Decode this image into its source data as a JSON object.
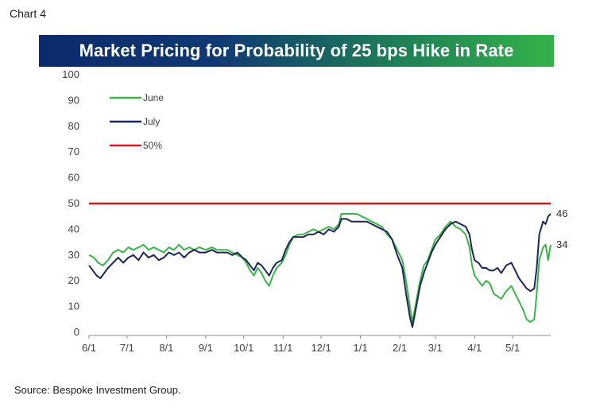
{
  "header": {
    "chart_label": "Chart 4"
  },
  "footer": {
    "source": "Source: Bespoke Investment Group."
  },
  "colors": {
    "june": "#3cb34a",
    "july": "#1b2756",
    "threshold": "#d7191c",
    "banner_start": "#0b2a6b",
    "banner_end": "#34b24a"
  },
  "chart_data": {
    "type": "line",
    "title": "Market Pricing for Probability of 25 bps Hike in Rate",
    "xlabel": "",
    "ylabel": "",
    "ylim": [
      0,
      100
    ],
    "yticks": [
      0,
      10,
      20,
      30,
      40,
      50,
      60,
      70,
      80,
      90,
      100
    ],
    "xlim": [
      "2016-06-01",
      "2017-05-31"
    ],
    "xticks": [
      {
        "date": "2016-06-01",
        "label": "6/1"
      },
      {
        "date": "2016-07-01",
        "label": "7/1"
      },
      {
        "date": "2016-08-01",
        "label": "8/1"
      },
      {
        "date": "2016-09-01",
        "label": "9/1"
      },
      {
        "date": "2016-10-01",
        "label": "10/1"
      },
      {
        "date": "2016-11-01",
        "label": "11/1"
      },
      {
        "date": "2016-12-01",
        "label": "12/1"
      },
      {
        "date": "2017-01-01",
        "label": "1/1"
      },
      {
        "date": "2017-02-01",
        "label": "2/1"
      },
      {
        "date": "2017-03-01",
        "label": "3/1"
      },
      {
        "date": "2017-04-01",
        "label": "4/1"
      },
      {
        "date": "2017-05-01",
        "label": "5/1"
      }
    ],
    "grid": false,
    "legend_position": "top-left",
    "series": [
      {
        "name": "June",
        "color": "#3cb34a",
        "end_label": "34",
        "points": [
          [
            "2016-06-01",
            30
          ],
          [
            "2016-06-05",
            29
          ],
          [
            "2016-06-08",
            27
          ],
          [
            "2016-06-12",
            26
          ],
          [
            "2016-06-16",
            28
          ],
          [
            "2016-06-20",
            31
          ],
          [
            "2016-06-24",
            32
          ],
          [
            "2016-06-28",
            31
          ],
          [
            "2016-07-02",
            33
          ],
          [
            "2016-07-06",
            32
          ],
          [
            "2016-07-10",
            33
          ],
          [
            "2016-07-14",
            34
          ],
          [
            "2016-07-18",
            32
          ],
          [
            "2016-07-22",
            33
          ],
          [
            "2016-07-26",
            32
          ],
          [
            "2016-07-30",
            31
          ],
          [
            "2016-08-03",
            33
          ],
          [
            "2016-08-07",
            32
          ],
          [
            "2016-08-11",
            34
          ],
          [
            "2016-08-15",
            32
          ],
          [
            "2016-08-19",
            33
          ],
          [
            "2016-08-23",
            32
          ],
          [
            "2016-08-27",
            33
          ],
          [
            "2016-09-01",
            32
          ],
          [
            "2016-09-06",
            33
          ],
          [
            "2016-09-10",
            32
          ],
          [
            "2016-09-14",
            32
          ],
          [
            "2016-09-18",
            32
          ],
          [
            "2016-09-22",
            31
          ],
          [
            "2016-09-26",
            30
          ],
          [
            "2016-09-30",
            29
          ],
          [
            "2016-10-03",
            27
          ],
          [
            "2016-10-06",
            24
          ],
          [
            "2016-10-09",
            22
          ],
          [
            "2016-10-12",
            25
          ],
          [
            "2016-10-15",
            23
          ],
          [
            "2016-10-18",
            20
          ],
          [
            "2016-10-21",
            18
          ],
          [
            "2016-10-24",
            22
          ],
          [
            "2016-10-27",
            25
          ],
          [
            "2016-10-31",
            27
          ],
          [
            "2016-11-03",
            30
          ],
          [
            "2016-11-06",
            34
          ],
          [
            "2016-11-09",
            37
          ],
          [
            "2016-11-13",
            38
          ],
          [
            "2016-11-17",
            38
          ],
          [
            "2016-11-21",
            39
          ],
          [
            "2016-11-25",
            40
          ],
          [
            "2016-11-29",
            39
          ],
          [
            "2016-12-03",
            40
          ],
          [
            "2016-12-07",
            41
          ],
          [
            "2016-12-11",
            40
          ],
          [
            "2016-12-15",
            42
          ],
          [
            "2016-12-17",
            46
          ],
          [
            "2016-12-21",
            46
          ],
          [
            "2016-12-25",
            46
          ],
          [
            "2016-12-29",
            46
          ],
          [
            "2017-01-02",
            45
          ],
          [
            "2017-01-06",
            44
          ],
          [
            "2017-01-10",
            43
          ],
          [
            "2017-01-14",
            42
          ],
          [
            "2017-01-18",
            41
          ],
          [
            "2017-01-22",
            38
          ],
          [
            "2017-01-26",
            36
          ],
          [
            "2017-01-30",
            32
          ],
          [
            "2017-02-03",
            28
          ],
          [
            "2017-02-06",
            20
          ],
          [
            "2017-02-09",
            10
          ],
          [
            "2017-02-11",
            4
          ],
          [
            "2017-02-14",
            12
          ],
          [
            "2017-02-17",
            20
          ],
          [
            "2017-02-20",
            26
          ],
          [
            "2017-02-23",
            28
          ],
          [
            "2017-02-26",
            32
          ],
          [
            "2017-03-01",
            36
          ],
          [
            "2017-03-05",
            38
          ],
          [
            "2017-03-09",
            41
          ],
          [
            "2017-03-13",
            43
          ],
          [
            "2017-03-17",
            41
          ],
          [
            "2017-03-21",
            40
          ],
          [
            "2017-03-25",
            38
          ],
          [
            "2017-03-28",
            33
          ],
          [
            "2017-03-30",
            26
          ],
          [
            "2017-04-01",
            22
          ],
          [
            "2017-04-04",
            20
          ],
          [
            "2017-04-07",
            18
          ],
          [
            "2017-04-10",
            20
          ],
          [
            "2017-04-13",
            19
          ],
          [
            "2017-04-16",
            15
          ],
          [
            "2017-04-19",
            14
          ],
          [
            "2017-04-22",
            13
          ],
          [
            "2017-04-26",
            16
          ],
          [
            "2017-04-30",
            18
          ],
          [
            "2017-05-03",
            15
          ],
          [
            "2017-05-06",
            12
          ],
          [
            "2017-05-09",
            9
          ],
          [
            "2017-05-12",
            5
          ],
          [
            "2017-05-15",
            4
          ],
          [
            "2017-05-18",
            5
          ],
          [
            "2017-05-20",
            15
          ],
          [
            "2017-05-22",
            28
          ],
          [
            "2017-05-25",
            33
          ],
          [
            "2017-05-27",
            34
          ],
          [
            "2017-05-29",
            28
          ],
          [
            "2017-05-31",
            34
          ]
        ]
      },
      {
        "name": "July",
        "color": "#1b2756",
        "end_label": "46",
        "points": [
          [
            "2016-06-01",
            26
          ],
          [
            "2016-06-04",
            24
          ],
          [
            "2016-06-07",
            22
          ],
          [
            "2016-06-10",
            21
          ],
          [
            "2016-06-13",
            23
          ],
          [
            "2016-06-16",
            25
          ],
          [
            "2016-06-20",
            27
          ],
          [
            "2016-06-24",
            29
          ],
          [
            "2016-06-28",
            27
          ],
          [
            "2016-07-02",
            29
          ],
          [
            "2016-07-06",
            30
          ],
          [
            "2016-07-10",
            28
          ],
          [
            "2016-07-14",
            31
          ],
          [
            "2016-07-18",
            29
          ],
          [
            "2016-07-22",
            30
          ],
          [
            "2016-07-26",
            28
          ],
          [
            "2016-07-30",
            29
          ],
          [
            "2016-08-03",
            31
          ],
          [
            "2016-08-07",
            30
          ],
          [
            "2016-08-11",
            31
          ],
          [
            "2016-08-15",
            29
          ],
          [
            "2016-08-19",
            31
          ],
          [
            "2016-08-23",
            32
          ],
          [
            "2016-08-27",
            31
          ],
          [
            "2016-09-01",
            31
          ],
          [
            "2016-09-06",
            32
          ],
          [
            "2016-09-10",
            31
          ],
          [
            "2016-09-14",
            31
          ],
          [
            "2016-09-18",
            31
          ],
          [
            "2016-09-22",
            30
          ],
          [
            "2016-09-26",
            31
          ],
          [
            "2016-09-30",
            29
          ],
          [
            "2016-10-03",
            28
          ],
          [
            "2016-10-06",
            26
          ],
          [
            "2016-10-09",
            24
          ],
          [
            "2016-10-12",
            27
          ],
          [
            "2016-10-15",
            26
          ],
          [
            "2016-10-18",
            24
          ],
          [
            "2016-10-21",
            22
          ],
          [
            "2016-10-24",
            25
          ],
          [
            "2016-10-27",
            27
          ],
          [
            "2016-10-31",
            28
          ],
          [
            "2016-11-03",
            32
          ],
          [
            "2016-11-06",
            35
          ],
          [
            "2016-11-09",
            37
          ],
          [
            "2016-11-13",
            37
          ],
          [
            "2016-11-17",
            37
          ],
          [
            "2016-11-21",
            38
          ],
          [
            "2016-11-25",
            38
          ],
          [
            "2016-11-29",
            39
          ],
          [
            "2016-12-03",
            38
          ],
          [
            "2016-12-07",
            40
          ],
          [
            "2016-12-11",
            39
          ],
          [
            "2016-12-15",
            41
          ],
          [
            "2016-12-17",
            44
          ],
          [
            "2016-12-21",
            44
          ],
          [
            "2016-12-25",
            43
          ],
          [
            "2016-12-29",
            43
          ],
          [
            "2017-01-02",
            43
          ],
          [
            "2017-01-06",
            43
          ],
          [
            "2017-01-10",
            42
          ],
          [
            "2017-01-14",
            41
          ],
          [
            "2017-01-18",
            40
          ],
          [
            "2017-01-22",
            39
          ],
          [
            "2017-01-26",
            36
          ],
          [
            "2017-01-30",
            30
          ],
          [
            "2017-02-03",
            25
          ],
          [
            "2017-02-06",
            15
          ],
          [
            "2017-02-09",
            6
          ],
          [
            "2017-02-11",
            2
          ],
          [
            "2017-02-14",
            10
          ],
          [
            "2017-02-17",
            18
          ],
          [
            "2017-02-20",
            23
          ],
          [
            "2017-02-23",
            27
          ],
          [
            "2017-02-26",
            31
          ],
          [
            "2017-03-01",
            34
          ],
          [
            "2017-03-05",
            37
          ],
          [
            "2017-03-09",
            40
          ],
          [
            "2017-03-13",
            42
          ],
          [
            "2017-03-17",
            43
          ],
          [
            "2017-03-21",
            42
          ],
          [
            "2017-03-25",
            41
          ],
          [
            "2017-03-28",
            38
          ],
          [
            "2017-03-30",
            32
          ],
          [
            "2017-04-01",
            28
          ],
          [
            "2017-04-04",
            27
          ],
          [
            "2017-04-07",
            25
          ],
          [
            "2017-04-10",
            25
          ],
          [
            "2017-04-13",
            24
          ],
          [
            "2017-04-16",
            24
          ],
          [
            "2017-04-19",
            25
          ],
          [
            "2017-04-22",
            23
          ],
          [
            "2017-04-26",
            26
          ],
          [
            "2017-04-30",
            27
          ],
          [
            "2017-05-03",
            24
          ],
          [
            "2017-05-06",
            21
          ],
          [
            "2017-05-09",
            19
          ],
          [
            "2017-05-12",
            17
          ],
          [
            "2017-05-15",
            16
          ],
          [
            "2017-05-18",
            17
          ],
          [
            "2017-05-20",
            25
          ],
          [
            "2017-05-22",
            38
          ],
          [
            "2017-05-25",
            43
          ],
          [
            "2017-05-27",
            42
          ],
          [
            "2017-05-29",
            45
          ],
          [
            "2017-05-31",
            46
          ]
        ]
      },
      {
        "name": "50%",
        "color": "#d7191c",
        "points": [
          [
            "2016-06-01",
            50
          ],
          [
            "2017-05-31",
            50
          ]
        ]
      }
    ]
  }
}
